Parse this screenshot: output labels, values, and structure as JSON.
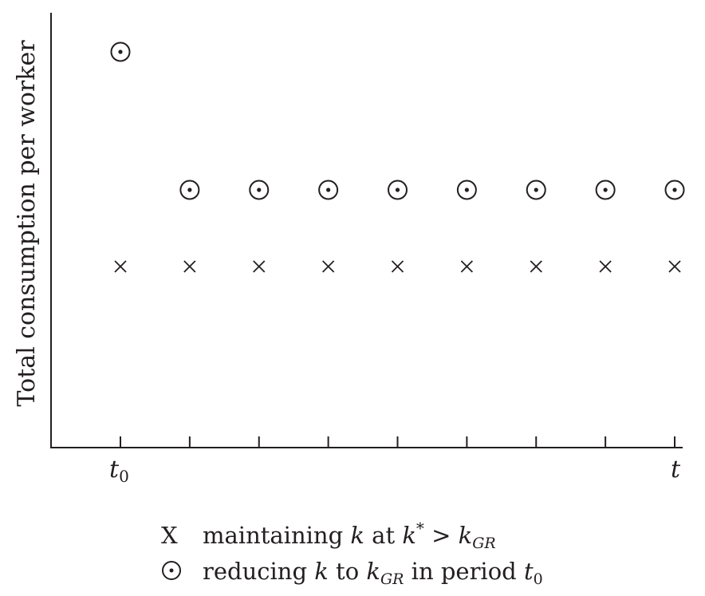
{
  "chart_data": {
    "type": "scatter",
    "ylabel": "Total consumption per worker",
    "x_tick_first": "t",
    "x_tick_first_sub": "0",
    "x_tick_last": "t",
    "x_count": 9,
    "series": [
      {
        "name": "reducing k to k_GR in period t0",
        "marker": "circled-dot",
        "values": [
          "high",
          "medium",
          "medium",
          "medium",
          "medium",
          "medium",
          "medium",
          "medium",
          "medium"
        ]
      },
      {
        "name": "maintaining k at k* > k_GR",
        "marker": "x",
        "values": [
          "low",
          "low",
          "low",
          "low",
          "low",
          "low",
          "low",
          "low",
          "low"
        ]
      }
    ]
  },
  "legend": {
    "x_symbol": "X",
    "x_text1": "maintaining ",
    "x_var": "k",
    "x_text2": " at ",
    "x_kstar": "k",
    "x_star": "*",
    "x_gt": " > ",
    "x_kgr": "k",
    "x_gr": "GR",
    "c_text1": "reducing ",
    "c_var": "k",
    "c_text2": " to ",
    "c_kgr": "k",
    "c_gr": "GR",
    "c_text3": " in period ",
    "c_t": "t",
    "c_t0": "0"
  },
  "colors": {
    "ink": "#231f20",
    "background": "#ffffff"
  }
}
